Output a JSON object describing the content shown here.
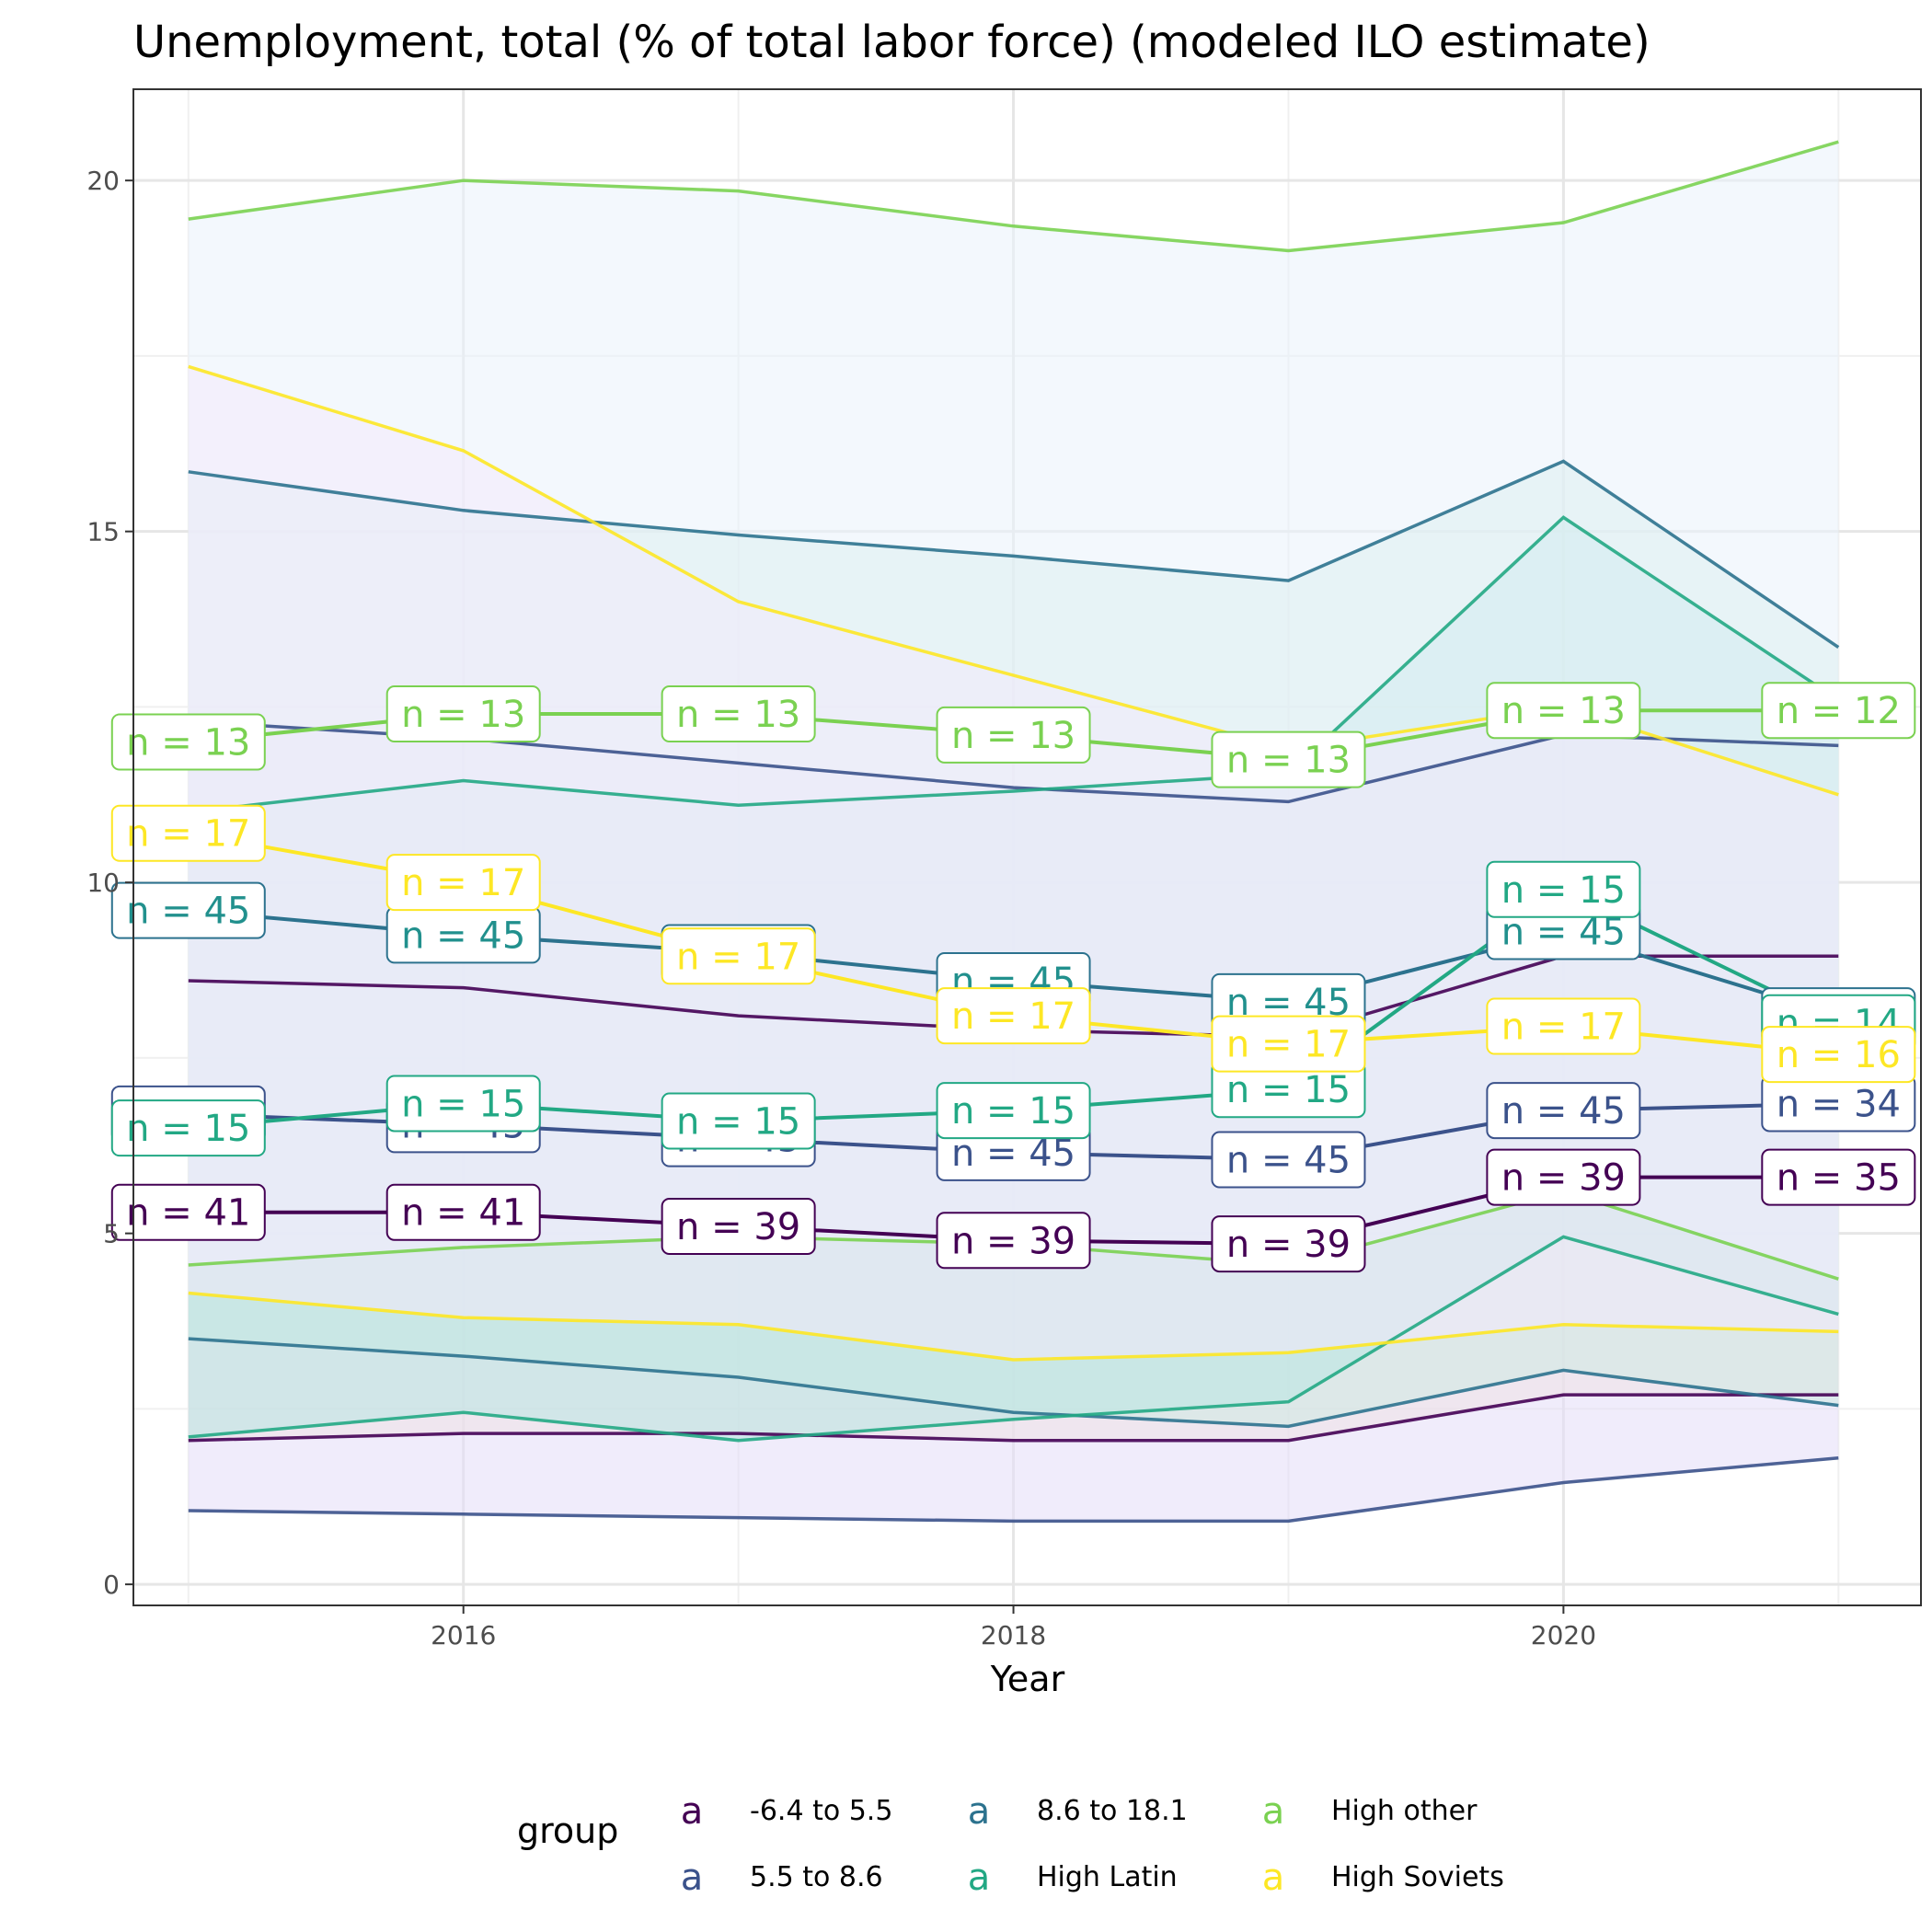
{
  "chart_data": {
    "type": "line",
    "title": "Unemployment, total (% of total labor force) (modeled ILO estimate)",
    "xlabel": "Year",
    "ylabel": "",
    "xlim": [
      2014.8,
      2021.3
    ],
    "ylim": [
      -0.3,
      21.3
    ],
    "x_ticks": [
      2016,
      2018,
      2020
    ],
    "y_ticks": [
      0,
      5,
      10,
      15,
      20
    ],
    "grid": true,
    "legend": {
      "title": "group",
      "position": "bottom",
      "key_glyph": "a"
    },
    "x": [
      2015,
      2016,
      2017,
      2018,
      2019,
      2020,
      2021
    ],
    "series": [
      {
        "name": "-6.4 to 5.5",
        "color": "#440154",
        "mean": [
          5.3,
          5.3,
          5.1,
          4.9,
          4.85,
          5.8,
          5.8
        ],
        "upper": [
          8.6,
          8.5,
          8.1,
          7.9,
          7.8,
          8.95,
          8.95
        ],
        "lower": [
          2.05,
          2.15,
          2.15,
          2.05,
          2.05,
          2.7,
          2.7
        ],
        "labels": [
          "n = 41",
          "n = 41",
          "n = 39",
          "n = 39",
          "n = 39",
          "n = 39",
          "n = 35"
        ],
        "fill": "#fce8d0"
      },
      {
        "name": "5.5 to 8.6",
        "color": "#3b528b",
        "mean": [
          6.7,
          6.55,
          6.35,
          6.15,
          6.05,
          6.75,
          6.85
        ],
        "upper": [
          12.3,
          12.05,
          11.7,
          11.35,
          11.15,
          12.1,
          11.95
        ],
        "lower": [
          1.05,
          1.0,
          0.95,
          0.9,
          0.9,
          1.45,
          1.8
        ],
        "labels": [
          "n = 45",
          "n = 45",
          "n = 45",
          "n = 45",
          "n = 45",
          "n = 45",
          "n = 34"
        ],
        "fill": "#e4dcf8"
      },
      {
        "name": "8.6 to 18.1",
        "color": "#21908d",
        "mean": [
          9.6,
          9.25,
          9.0,
          8.6,
          8.3,
          9.3,
          8.1
        ],
        "upper": [
          15.85,
          15.3,
          14.95,
          14.65,
          14.3,
          16.0,
          13.35
        ],
        "lower": [
          3.5,
          3.25,
          2.95,
          2.45,
          2.25,
          3.05,
          2.55
        ],
        "labels": [
          "n = 45",
          "n = 45",
          "n = 45",
          "n = 45",
          "n = 45",
          "n = 45",
          "n = 14"
        ],
        "fill": "#cdeae2",
        "line_color": "#2c728e"
      },
      {
        "name": "High Latin",
        "color": "#22a884",
        "mean": [
          6.5,
          6.85,
          6.6,
          6.75,
          7.05,
          9.9,
          8.0
        ],
        "upper": [
          11.0,
          11.45,
          11.1,
          11.3,
          11.55,
          15.2,
          12.6
        ],
        "lower": [
          2.1,
          2.45,
          2.05,
          2.35,
          2.6,
          4.95,
          3.85
        ],
        "labels": [
          "n = 15",
          "n = 15",
          "n = 15",
          "n = 15",
          "n = 15",
          "n = 15",
          "n = 14"
        ],
        "fill": "#b8e6e1"
      },
      {
        "name": "High other",
        "color": "#7ad151",
        "mean": [
          12.0,
          12.4,
          12.4,
          12.1,
          11.75,
          12.45,
          12.45
        ],
        "upper": [
          19.45,
          20.0,
          19.85,
          19.35,
          19.0,
          19.4,
          20.55
        ],
        "lower": [
          4.55,
          4.8,
          4.95,
          4.85,
          4.55,
          5.6,
          4.35
        ],
        "labels": [
          "n = 13",
          "n = 13",
          "n = 13",
          "n = 13",
          "n = 13",
          "n = 13",
          "n = 12"
        ],
        "fill": "#eaf2fc"
      },
      {
        "name": "High Soviets",
        "color": "#fde725",
        "mean": [
          10.7,
          10.0,
          8.95,
          8.1,
          7.7,
          7.95,
          7.55
        ],
        "upper": [
          17.35,
          16.15,
          14.0,
          12.95,
          11.9,
          12.5,
          11.25
        ],
        "lower": [
          4.15,
          3.8,
          3.7,
          3.2,
          3.3,
          3.7,
          3.6
        ],
        "labels": [
          "n = 17",
          "n = 17",
          "n = 17",
          "n = 17",
          "n = 17",
          "n = 17",
          "n = 16"
        ],
        "fill": "#f3eafc"
      }
    ]
  }
}
